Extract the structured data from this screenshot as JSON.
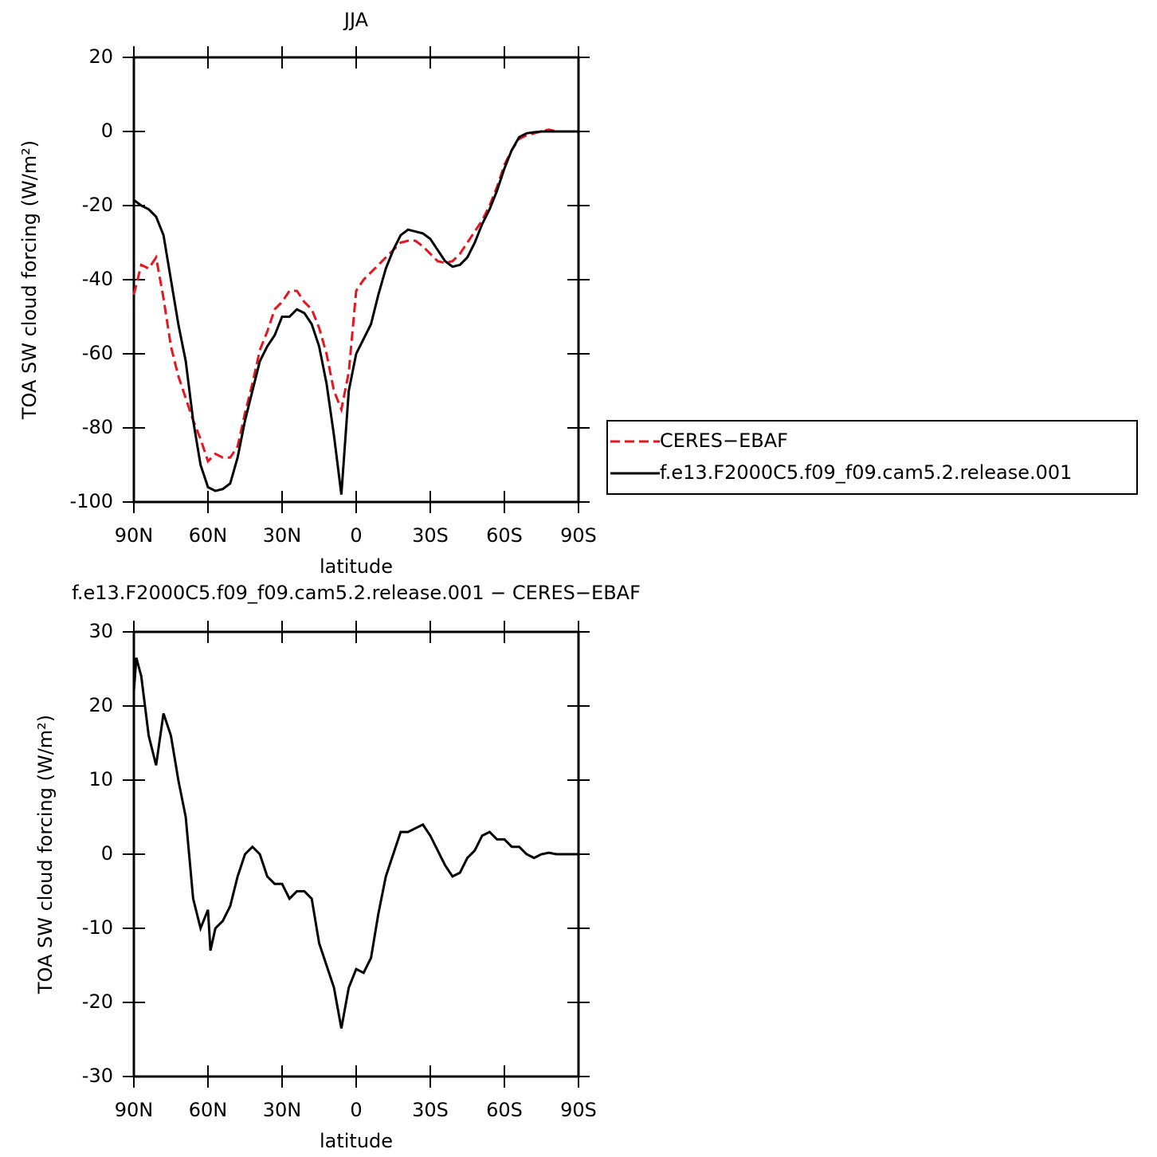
{
  "chart_data": [
    {
      "type": "line",
      "title": "JJA",
      "xlabel": "latitude",
      "ylabel": "TOA SW cloud forcing (W/m²)",
      "x": [
        90,
        87,
        84,
        81,
        78,
        75,
        72,
        69,
        66,
        63,
        60,
        57,
        54,
        51,
        48,
        45,
        42,
        39,
        36,
        33,
        30,
        27,
        24,
        21,
        18,
        15,
        12,
        9,
        6,
        3,
        0,
        -3,
        -6,
        -9,
        -12,
        -15,
        -18,
        -21,
        -24,
        -27,
        -30,
        -33,
        -36,
        -39,
        -42,
        -45,
        -48,
        -51,
        -54,
        -57,
        -60,
        -63,
        -66,
        -69,
        -72,
        -75,
        -78,
        -81,
        -84,
        -87,
        -90
      ],
      "series": [
        {
          "name": "CERES−EBAF",
          "color": "#e8141e",
          "style": "dashed",
          "values": [
            -44,
            -36,
            -37,
            -34,
            -45,
            -58,
            -66,
            -72,
            -78,
            -83,
            -89,
            -87,
            -88,
            -88,
            -85,
            -76,
            -68,
            -59,
            -54,
            -48,
            -46,
            -43,
            -43,
            -46,
            -48,
            -53,
            -60,
            -70,
            -75,
            -65,
            -43,
            -40,
            -38,
            -36,
            -34,
            -32,
            -30,
            -29.5,
            -29.5,
            -31,
            -33,
            -35,
            -35.5,
            -35,
            -33,
            -30,
            -27,
            -24,
            -20,
            -15,
            -9,
            -5,
            -2,
            -1,
            -0.5,
            0,
            0.5,
            0,
            0,
            0,
            0
          ]
        },
        {
          "name": "f.e13.F2000C5.f09_f09.cam5.2.release.001",
          "color": "#000000",
          "style": "solid",
          "values": [
            -18.5,
            -20,
            -21,
            -23,
            -28,
            -40,
            -52,
            -62,
            -78,
            -90,
            -96,
            -97,
            -96.5,
            -95,
            -88,
            -78,
            -70,
            -62,
            -58,
            -55,
            -50,
            -50,
            -48,
            -49,
            -52,
            -58,
            -68,
            -82,
            -98,
            -70,
            -60,
            -56,
            -52,
            -44,
            -37,
            -32,
            -28,
            -26.5,
            -27,
            -27.5,
            -29,
            -32,
            -35,
            -36.5,
            -36,
            -34,
            -30,
            -25,
            -21,
            -16,
            -10,
            -5,
            -1.5,
            -0.5,
            -0.2,
            0,
            0,
            0,
            0,
            0,
            0
          ]
        }
      ],
      "xlim": [
        90,
        -90
      ],
      "xticks": [
        {
          "value": 90,
          "label": "90N"
        },
        {
          "value": 60,
          "label": "60N"
        },
        {
          "value": 30,
          "label": "30N"
        },
        0,
        {
          "value": -30,
          "label": "30S"
        },
        {
          "value": -60,
          "label": "60S"
        },
        {
          "value": -90,
          "label": "90S"
        }
      ],
      "ylim": [
        -100,
        20
      ],
      "yticks": [
        -100,
        -80,
        -60,
        -40,
        -20,
        0,
        20
      ],
      "legend": "right"
    },
    {
      "type": "line",
      "title": "f.e13.F2000C5.f09_f09.cam5.2.release.001 − CERES−EBAF",
      "xlabel": "latitude",
      "ylabel": "TOA SW cloud forcing (W/m²)",
      "x": [
        90,
        89,
        87,
        84,
        81,
        78,
        75,
        72,
        69,
        66,
        63,
        60,
        59,
        57,
        54,
        51,
        48,
        45,
        42,
        39,
        36,
        33,
        30,
        27,
        24,
        21,
        18,
        15,
        12,
        9,
        6,
        3,
        0,
        -3,
        -6,
        -9,
        -12,
        -15,
        -18,
        -21,
        -24,
        -27,
        -30,
        -33,
        -36,
        -39,
        -42,
        -45,
        -48,
        -51,
        -54,
        -57,
        -60,
        -63,
        -66,
        -69,
        -72,
        -75,
        -78,
        -81,
        -84,
        -87,
        -90
      ],
      "series": [
        {
          "color": "#000000",
          "style": "solid",
          "values": [
            22,
            26.5,
            24,
            16,
            12,
            19,
            16,
            10,
            5,
            -6,
            -10,
            -7.5,
            -13,
            -10,
            -9,
            -7,
            -3,
            0,
            1,
            0,
            -3,
            -4,
            -4,
            -6,
            -5,
            -5,
            -6,
            -12,
            -15,
            -18,
            -23.5,
            -18,
            -15.5,
            -16,
            -14,
            -8,
            -3,
            0,
            3,
            3,
            3.5,
            4,
            2.5,
            0.5,
            -1.5,
            -3,
            -2.5,
            -0.5,
            0.5,
            2.5,
            3,
            2,
            2,
            1,
            1,
            0,
            -0.5,
            0,
            0.2,
            0,
            0,
            0,
            0
          ]
        }
      ],
      "xlim": [
        90,
        -90
      ],
      "xticks": [
        {
          "value": 90,
          "label": "90N"
        },
        {
          "value": 60,
          "label": "60N"
        },
        {
          "value": 30,
          "label": "30N"
        },
        0,
        {
          "value": -30,
          "label": "30S"
        },
        {
          "value": -60,
          "label": "60S"
        },
        {
          "value": -90,
          "label": "90S"
        }
      ],
      "ylim": [
        -30,
        30
      ],
      "yticks": [
        -30,
        -20,
        -10,
        0,
        10,
        20,
        30
      ]
    }
  ]
}
